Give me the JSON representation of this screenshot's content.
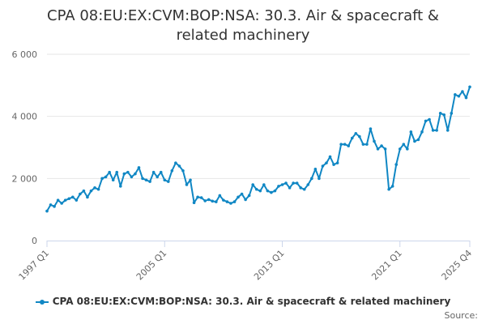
{
  "chart_data": {
    "type": "line",
    "title_line1": "CPA 08:EU:EX:CVM:BOP:NSA: 30.3. Air & spacecraft &",
    "title_line2": "related machinery",
    "xlabel": "",
    "ylabel": "",
    "ylim": [
      0,
      6000
    ],
    "y_ticks": [
      0,
      2000,
      4000,
      6000
    ],
    "y_tick_labels": [
      "0",
      "2 000",
      "4 000",
      "6 000"
    ],
    "x_tick_labels": [
      "1997 Q1",
      "2005 Q1",
      "2013 Q1",
      "2021 Q1",
      "2025 Q4"
    ],
    "x_tick_index": [
      0,
      32,
      64,
      96,
      115
    ],
    "grid": true,
    "legend_position": "bottom",
    "colors": {
      "series": "#1087c4",
      "grid": "#e6e6e6",
      "axis": "#ccd6eb"
    },
    "series": [
      {
        "name": "CPA 08:EU:EX:CVM:BOP:NSA: 30.3. Air & spacecraft & related machinery",
        "x_start": "1997 Q1",
        "x_end": "2025 Q4",
        "values": [
          950,
          1150,
          1100,
          1300,
          1200,
          1300,
          1350,
          1400,
          1300,
          1500,
          1600,
          1400,
          1600,
          1700,
          1650,
          2000,
          2050,
          2200,
          1950,
          2200,
          1750,
          2150,
          2200,
          2050,
          2150,
          2350,
          2000,
          1950,
          1900,
          2200,
          2050,
          2200,
          1950,
          1900,
          2250,
          2500,
          2400,
          2250,
          1800,
          1950,
          1220,
          1400,
          1380,
          1280,
          1320,
          1270,
          1250,
          1450,
          1300,
          1250,
          1200,
          1250,
          1400,
          1500,
          1320,
          1450,
          1800,
          1650,
          1600,
          1800,
          1600,
          1550,
          1600,
          1750,
          1800,
          1850,
          1700,
          1850,
          1850,
          1700,
          1650,
          1800,
          2000,
          2300,
          2000,
          2400,
          2500,
          2700,
          2450,
          2500,
          3100,
          3100,
          3050,
          3300,
          3450,
          3350,
          3100,
          3100,
          3600,
          3200,
          2950,
          3050,
          2950,
          1650,
          1750,
          2450,
          2950,
          3100,
          2950,
          3500,
          3200,
          3250,
          3500,
          3850,
          3900,
          3550,
          3550,
          4100,
          4050,
          3550,
          4100,
          4700,
          4650,
          4800,
          4600,
          4950
        ]
      }
    ]
  },
  "legend": {
    "label": "CPA 08:EU:EX:CVM:BOP:NSA: 30.3. Air & spacecraft & related machinery"
  },
  "footer": {
    "source_label": "Source:"
  }
}
